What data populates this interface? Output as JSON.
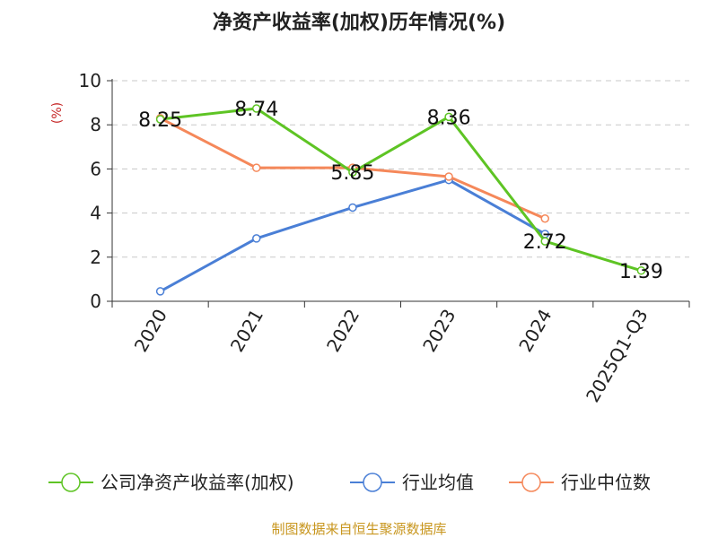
{
  "chart_data": {
    "type": "line",
    "title": "净资产收益率(加权)历年情况(%)",
    "ylabel": "(%)",
    "xlabel": "",
    "categories": [
      "2020",
      "2021",
      "2022",
      "2023",
      "2024",
      "2025Q1-Q3"
    ],
    "ylim": [
      0,
      10
    ],
    "yticks": [
      0,
      2,
      4,
      6,
      8,
      10
    ],
    "grid": true,
    "legend_position": "bottom",
    "series": [
      {
        "name": "公司净资产收益率(加权)",
        "color": "#5ec424",
        "values": [
          8.25,
          8.74,
          5.85,
          8.36,
          2.72,
          1.39
        ],
        "labels": [
          "8.25",
          "8.74",
          "5.85",
          "8.36",
          "2.72",
          "1.39"
        ]
      },
      {
        "name": "行业均值",
        "color": "#4a7fd6",
        "values": [
          0.45,
          2.85,
          4.25,
          5.5,
          3.05,
          null
        ]
      },
      {
        "name": "行业中位数",
        "color": "#f5885a",
        "values": [
          8.3,
          6.05,
          6.05,
          5.65,
          3.75,
          null
        ]
      }
    ]
  },
  "source": "制图数据来自恒生聚源数据库"
}
